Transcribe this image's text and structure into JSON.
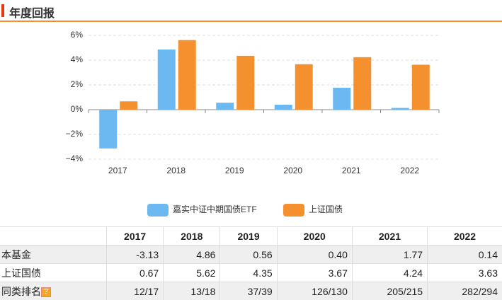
{
  "header": {
    "title": "年度回报"
  },
  "chart_data": {
    "type": "bar",
    "categories": [
      "2017",
      "2018",
      "2019",
      "2020",
      "2021",
      "2022"
    ],
    "series": [
      {
        "name": "嘉实中证中期国债ETF",
        "color": "#6cb8f0",
        "values": [
          -3.13,
          4.86,
          0.56,
          0.4,
          1.77,
          0.14
        ]
      },
      {
        "name": "上证国债",
        "color": "#f5902e",
        "values": [
          0.67,
          5.62,
          4.35,
          3.67,
          4.24,
          3.63
        ]
      }
    ],
    "ylim": [
      -4,
      6
    ],
    "yticks": [
      {
        "value": -4,
        "label": "−4%"
      },
      {
        "value": -2,
        "label": "−2%"
      },
      {
        "value": 0,
        "label": "0%"
      },
      {
        "value": 2,
        "label": "2%"
      },
      {
        "value": 4,
        "label": "4%"
      },
      {
        "value": 6,
        "label": "6%"
      }
    ],
    "grid": true,
    "legend": "bottom"
  },
  "table": {
    "columns": [
      "2017",
      "2018",
      "2019",
      "2020",
      "2021",
      "2022"
    ],
    "rows": [
      {
        "label": "本基金",
        "cells": [
          "-3.13",
          "4.86",
          "0.56",
          "0.40",
          "1.77",
          "0.14"
        ]
      },
      {
        "label": "上证国债",
        "cells": [
          "0.67",
          "5.62",
          "4.35",
          "3.67",
          "4.24",
          "3.63"
        ]
      },
      {
        "label": "同类排名",
        "icon": "?",
        "cells": [
          "12/17",
          "13/18",
          "37/39",
          "126/130",
          "205/215",
          "282/294"
        ]
      }
    ]
  }
}
